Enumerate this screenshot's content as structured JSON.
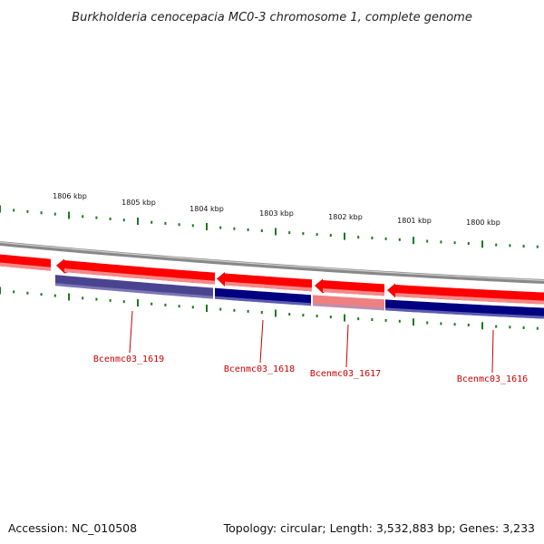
{
  "title": "Burkholderia cenocepacia MC0-3 chromosome 1, complete genome",
  "footer": {
    "accession": "Accession: NC_010508",
    "stats": "Topology: circular; Length: 3,532,883 bp; Genes: 3,233"
  },
  "colors": {
    "background": "#ffffff",
    "backbone": "#888888",
    "forward_strand": "#ff0000",
    "forward_strand_light": "#f08080",
    "reverse_strand": "#000080",
    "reverse_strand_light": "#4a4490",
    "ticks": "#1a7a1a",
    "label_color": "#cc0000"
  },
  "position_ticks": [
    "1806 kbp",
    "1805 kbp",
    "1804 kbp",
    "1803 kbp",
    "1802 kbp",
    "1801 kbp",
    "1800 kbp"
  ],
  "genes": [
    {
      "label": "Bcenmc03_1619",
      "strand": "reverse"
    },
    {
      "label": "Bcenmc03_1618",
      "strand": "reverse"
    },
    {
      "label": "Bcenmc03_1617",
      "strand": "reverse"
    },
    {
      "label": "Bcenmc03_1616",
      "strand": "reverse"
    }
  ]
}
